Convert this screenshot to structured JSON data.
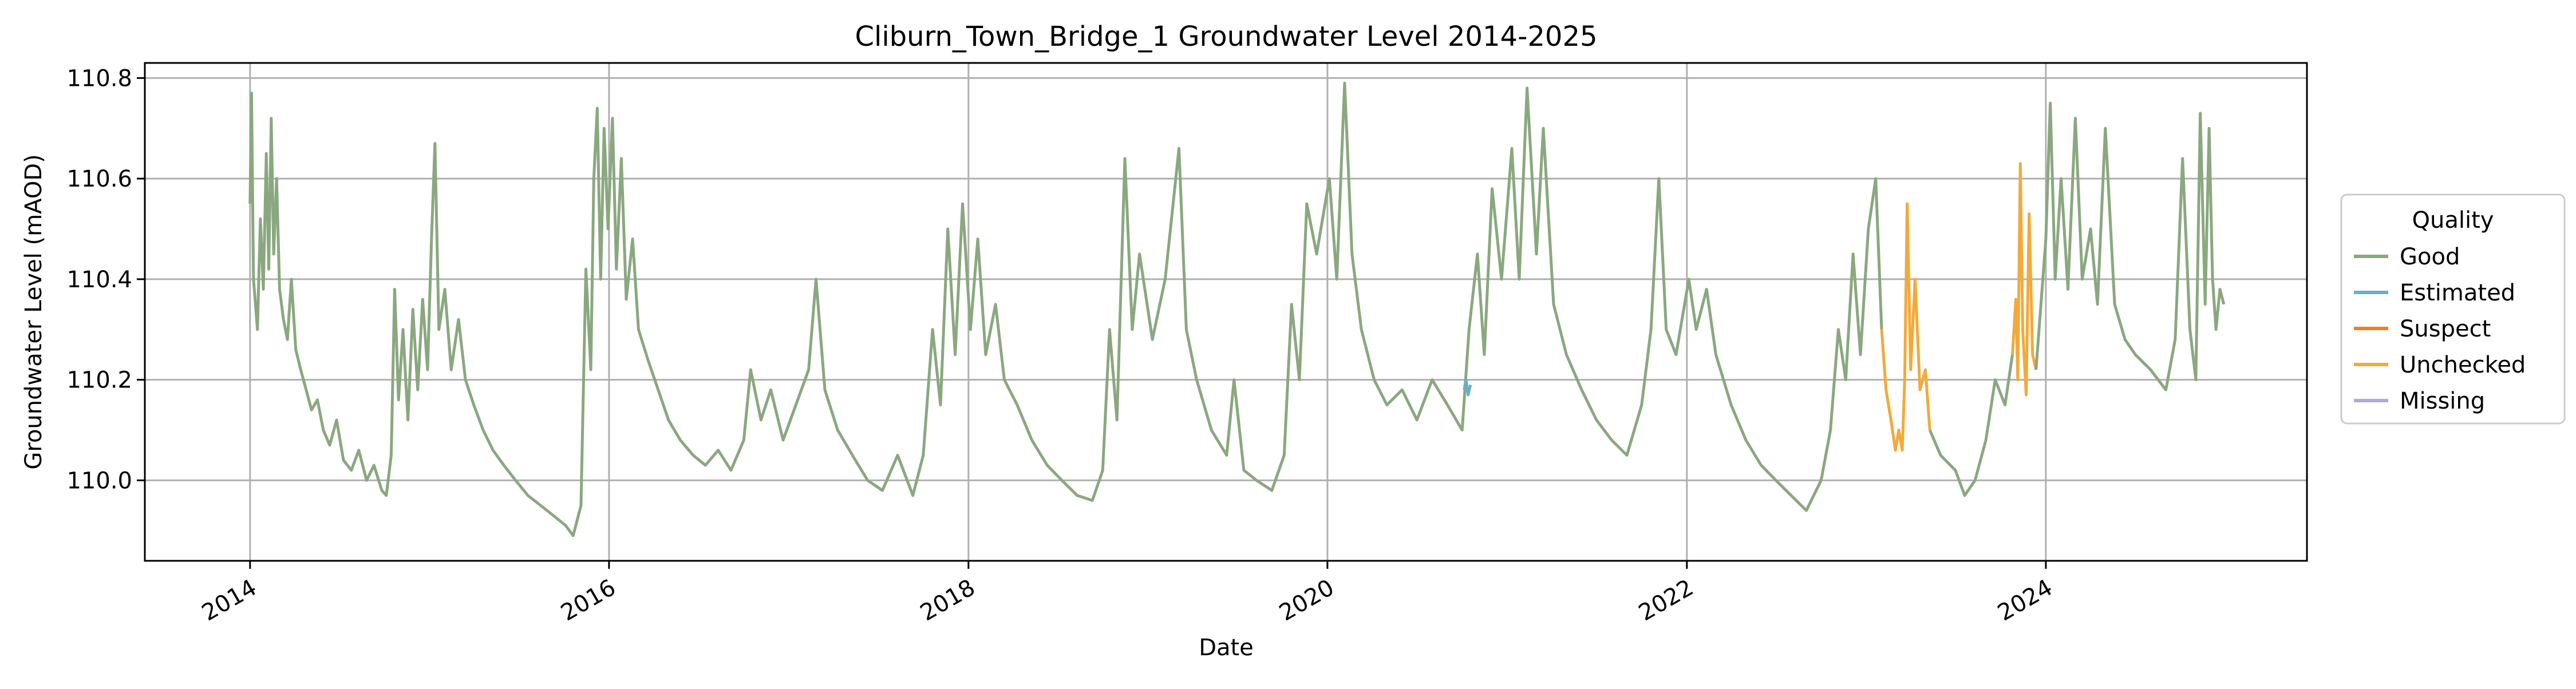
{
  "chart_data": {
    "type": "line",
    "title": "Cliburn_Town_Bridge_1 Groundwater Level 2014-2025",
    "xlabel": "Date",
    "ylabel": "Groundwater Level (mAOD)",
    "xlim": [
      "2013-06-01",
      "2025-06-15"
    ],
    "ylim": [
      109.84,
      110.83
    ],
    "x_ticks": [
      "2014",
      "2016",
      "2018",
      "2020",
      "2022",
      "2024"
    ],
    "y_ticks": [
      "110.0",
      "110.2",
      "110.4",
      "110.6",
      "110.8"
    ],
    "grid": true,
    "legend": {
      "title": "Quality",
      "placement": "right",
      "entries": [
        {
          "label": "Good",
          "color": "#8aa87f"
        },
        {
          "label": "Estimated",
          "color": "#6aafc7"
        },
        {
          "label": "Suspect",
          "color": "#f07f22"
        },
        {
          "label": "Unchecked",
          "color": "#f2aa3a"
        },
        {
          "label": "Missing",
          "color": "#b3a8d6"
        }
      ]
    },
    "series": [
      {
        "name": "Good",
        "color": "#8aa87f",
        "points": [
          [
            "2014-01-01",
            110.55
          ],
          [
            "2014-01-04",
            110.77
          ],
          [
            "2014-01-08",
            110.4
          ],
          [
            "2014-01-12",
            110.35
          ],
          [
            "2014-01-16",
            110.3
          ],
          [
            "2014-01-22",
            110.52
          ],
          [
            "2014-01-28",
            110.38
          ],
          [
            "2014-02-03",
            110.65
          ],
          [
            "2014-02-08",
            110.42
          ],
          [
            "2014-02-13",
            110.72
          ],
          [
            "2014-02-18",
            110.45
          ],
          [
            "2014-02-24",
            110.6
          ],
          [
            "2014-03-02",
            110.38
          ],
          [
            "2014-03-10",
            110.32
          ],
          [
            "2014-03-18",
            110.28
          ],
          [
            "2014-03-26",
            110.4
          ],
          [
            "2014-04-04",
            110.26
          ],
          [
            "2014-04-14",
            110.22
          ],
          [
            "2014-04-25",
            110.18
          ],
          [
            "2014-05-06",
            110.14
          ],
          [
            "2014-05-18",
            110.16
          ],
          [
            "2014-05-30",
            110.1
          ],
          [
            "2014-06-12",
            110.07
          ],
          [
            "2014-06-26",
            110.12
          ],
          [
            "2014-07-10",
            110.04
          ],
          [
            "2014-07-26",
            110.02
          ],
          [
            "2014-08-10",
            110.06
          ],
          [
            "2014-08-26",
            110.0
          ],
          [
            "2014-09-10",
            110.03
          ],
          [
            "2014-09-26",
            109.98
          ],
          [
            "2014-10-05",
            109.97
          ],
          [
            "2014-10-15",
            110.05
          ],
          [
            "2014-10-22",
            110.38
          ],
          [
            "2014-10-30",
            110.16
          ],
          [
            "2014-11-08",
            110.3
          ],
          [
            "2014-11-18",
            110.12
          ],
          [
            "2014-11-28",
            110.34
          ],
          [
            "2014-12-08",
            110.18
          ],
          [
            "2014-12-18",
            110.36
          ],
          [
            "2014-12-28",
            110.22
          ],
          [
            "2015-01-05",
            110.48
          ],
          [
            "2015-01-12",
            110.67
          ],
          [
            "2015-01-20",
            110.3
          ],
          [
            "2015-02-01",
            110.38
          ],
          [
            "2015-02-14",
            110.22
          ],
          [
            "2015-03-01",
            110.32
          ],
          [
            "2015-03-15",
            110.2
          ],
          [
            "2015-04-01",
            110.15
          ],
          [
            "2015-04-20",
            110.1
          ],
          [
            "2015-05-10",
            110.06
          ],
          [
            "2015-06-01",
            110.03
          ],
          [
            "2015-06-25",
            110.0
          ],
          [
            "2015-07-20",
            109.97
          ],
          [
            "2015-08-15",
            109.95
          ],
          [
            "2015-09-10",
            109.93
          ],
          [
            "2015-10-05",
            109.91
          ],
          [
            "2015-10-20",
            109.89
          ],
          [
            "2015-11-05",
            109.95
          ],
          [
            "2015-11-15",
            110.42
          ],
          [
            "2015-11-25",
            110.22
          ],
          [
            "2015-12-01",
            110.6
          ],
          [
            "2015-12-08",
            110.74
          ],
          [
            "2015-12-15",
            110.4
          ],
          [
            "2015-12-22",
            110.7
          ],
          [
            "2015-12-30",
            110.5
          ],
          [
            "2016-01-08",
            110.72
          ],
          [
            "2016-01-16",
            110.42
          ],
          [
            "2016-01-26",
            110.64
          ],
          [
            "2016-02-05",
            110.36
          ],
          [
            "2016-02-18",
            110.48
          ],
          [
            "2016-03-01",
            110.3
          ],
          [
            "2016-03-20",
            110.24
          ],
          [
            "2016-04-10",
            110.18
          ],
          [
            "2016-05-01",
            110.12
          ],
          [
            "2016-05-25",
            110.08
          ],
          [
            "2016-06-20",
            110.05
          ],
          [
            "2016-07-15",
            110.03
          ],
          [
            "2016-08-10",
            110.06
          ],
          [
            "2016-09-05",
            110.02
          ],
          [
            "2016-10-01",
            110.08
          ],
          [
            "2016-10-15",
            110.22
          ],
          [
            "2016-11-05",
            110.12
          ],
          [
            "2016-11-25",
            110.18
          ],
          [
            "2016-12-20",
            110.08
          ],
          [
            "2017-01-15",
            110.15
          ],
          [
            "2017-02-10",
            110.22
          ],
          [
            "2017-02-25",
            110.4
          ],
          [
            "2017-03-15",
            110.18
          ],
          [
            "2017-04-10",
            110.1
          ],
          [
            "2017-05-10",
            110.05
          ],
          [
            "2017-06-10",
            110.0
          ],
          [
            "2017-07-10",
            109.98
          ],
          [
            "2017-08-10",
            110.05
          ],
          [
            "2017-09-10",
            109.97
          ],
          [
            "2017-10-01",
            110.05
          ],
          [
            "2017-10-20",
            110.3
          ],
          [
            "2017-11-05",
            110.15
          ],
          [
            "2017-11-20",
            110.5
          ],
          [
            "2017-12-05",
            110.25
          ],
          [
            "2017-12-20",
            110.55
          ],
          [
            "2018-01-05",
            110.3
          ],
          [
            "2018-01-20",
            110.48
          ],
          [
            "2018-02-05",
            110.25
          ],
          [
            "2018-02-25",
            110.35
          ],
          [
            "2018-03-15",
            110.2
          ],
          [
            "2018-04-10",
            110.15
          ],
          [
            "2018-05-10",
            110.08
          ],
          [
            "2018-06-10",
            110.03
          ],
          [
            "2018-07-10",
            110.0
          ],
          [
            "2018-08-10",
            109.97
          ],
          [
            "2018-09-10",
            109.96
          ],
          [
            "2018-10-01",
            110.02
          ],
          [
            "2018-10-15",
            110.3
          ],
          [
            "2018-10-30",
            110.12
          ],
          [
            "2018-11-15",
            110.64
          ],
          [
            "2018-11-30",
            110.3
          ],
          [
            "2018-12-15",
            110.45
          ],
          [
            "2019-01-10",
            110.28
          ],
          [
            "2019-02-05",
            110.4
          ],
          [
            "2019-03-05",
            110.66
          ],
          [
            "2019-03-20",
            110.3
          ],
          [
            "2019-04-10",
            110.2
          ],
          [
            "2019-05-10",
            110.1
          ],
          [
            "2019-06-10",
            110.05
          ],
          [
            "2019-06-25",
            110.2
          ],
          [
            "2019-07-15",
            110.02
          ],
          [
            "2019-08-10",
            110.0
          ],
          [
            "2019-09-10",
            109.98
          ],
          [
            "2019-10-05",
            110.05
          ],
          [
            "2019-10-20",
            110.35
          ],
          [
            "2019-11-05",
            110.2
          ],
          [
            "2019-11-20",
            110.55
          ],
          [
            "2019-12-10",
            110.45
          ],
          [
            "2020-01-05",
            110.6
          ],
          [
            "2020-01-20",
            110.4
          ],
          [
            "2020-02-05",
            110.79
          ],
          [
            "2020-02-20",
            110.45
          ],
          [
            "2020-03-10",
            110.3
          ],
          [
            "2020-04-05",
            110.2
          ],
          [
            "2020-05-01",
            110.15
          ],
          [
            "2020-06-01",
            110.18
          ],
          [
            "2020-07-01",
            110.12
          ],
          [
            "2020-08-01",
            110.2
          ],
          [
            "2020-09-01",
            110.15
          ],
          [
            "2020-10-01",
            110.1
          ],
          [
            "2020-10-15",
            110.3
          ],
          [
            "2020-11-01",
            110.45
          ],
          [
            "2020-11-15",
            110.25
          ],
          [
            "2020-12-01",
            110.58
          ],
          [
            "2020-12-20",
            110.4
          ],
          [
            "2021-01-10",
            110.66
          ],
          [
            "2021-01-25",
            110.4
          ],
          [
            "2021-02-10",
            110.78
          ],
          [
            "2021-03-01",
            110.45
          ],
          [
            "2021-03-15",
            110.7
          ],
          [
            "2021-04-05",
            110.35
          ],
          [
            "2021-05-01",
            110.25
          ],
          [
            "2021-06-01",
            110.18
          ],
          [
            "2021-07-01",
            110.12
          ],
          [
            "2021-08-01",
            110.08
          ],
          [
            "2021-09-01",
            110.05
          ],
          [
            "2021-10-01",
            110.15
          ],
          [
            "2021-10-20",
            110.3
          ],
          [
            "2021-11-05",
            110.6
          ],
          [
            "2021-11-20",
            110.3
          ],
          [
            "2021-12-10",
            110.25
          ],
          [
            "2022-01-05",
            110.4
          ],
          [
            "2022-01-20",
            110.3
          ],
          [
            "2022-02-10",
            110.38
          ],
          [
            "2022-03-01",
            110.25
          ],
          [
            "2022-04-01",
            110.15
          ],
          [
            "2022-05-01",
            110.08
          ],
          [
            "2022-06-01",
            110.03
          ],
          [
            "2022-07-01",
            110.0
          ],
          [
            "2022-08-01",
            109.97
          ],
          [
            "2022-09-01",
            109.94
          ],
          [
            "2022-10-01",
            110.0
          ],
          [
            "2022-10-20",
            110.1
          ],
          [
            "2022-11-05",
            110.3
          ],
          [
            "2022-11-20",
            110.2
          ],
          [
            "2022-12-05",
            110.45
          ],
          [
            "2022-12-20",
            110.25
          ],
          [
            "2023-01-05",
            110.5
          ],
          [
            "2023-01-20",
            110.6
          ],
          [
            "2023-02-01",
            110.3
          ]
        ]
      },
      {
        "name": "Estimated",
        "color": "#6aafc7",
        "points": [
          [
            "2020-10-05",
            110.18
          ],
          [
            "2020-10-09",
            110.2
          ],
          [
            "2020-10-13",
            110.17
          ],
          [
            "2020-10-18",
            110.19
          ]
        ]
      },
      {
        "name": "Unchecked",
        "color": "#f2aa3a",
        "points": [
          [
            "2023-02-01",
            110.3
          ],
          [
            "2023-02-10",
            110.18
          ],
          [
            "2023-02-20",
            110.12
          ],
          [
            "2023-03-01",
            110.06
          ],
          [
            "2023-03-08",
            110.1
          ],
          [
            "2023-03-15",
            110.06
          ],
          [
            "2023-03-20",
            110.2
          ],
          [
            "2023-03-25",
            110.55
          ],
          [
            "2023-04-01",
            110.22
          ],
          [
            "2023-04-10",
            110.4
          ],
          [
            "2023-04-20",
            110.18
          ],
          [
            "2023-05-01",
            110.22
          ],
          [
            "2023-05-10",
            110.1
          ]
        ]
      },
      {
        "name": "Good",
        "color": "#8aa87f",
        "points": [
          [
            "2023-05-10",
            110.1
          ],
          [
            "2023-06-01",
            110.05
          ],
          [
            "2023-07-01",
            110.02
          ],
          [
            "2023-07-20",
            109.97
          ],
          [
            "2023-08-10",
            110.0
          ],
          [
            "2023-09-01",
            110.08
          ],
          [
            "2023-09-20",
            110.2
          ],
          [
            "2023-10-10",
            110.15
          ],
          [
            "2023-10-25",
            110.25
          ]
        ]
      },
      {
        "name": "Unchecked",
        "color": "#f2aa3a",
        "points": [
          [
            "2023-10-25",
            110.25
          ],
          [
            "2023-11-01",
            110.36
          ],
          [
            "2023-11-05",
            110.2
          ],
          [
            "2023-11-10",
            110.63
          ],
          [
            "2023-11-15",
            110.3
          ],
          [
            "2023-11-22",
            110.17
          ],
          [
            "2023-11-28",
            110.53
          ],
          [
            "2023-12-05",
            110.25
          ],
          [
            "2023-12-12",
            110.22
          ]
        ]
      },
      {
        "name": "Good",
        "color": "#8aa87f",
        "points": [
          [
            "2023-12-12",
            110.22
          ],
          [
            "2024-01-01",
            110.48
          ],
          [
            "2024-01-10",
            110.75
          ],
          [
            "2024-01-20",
            110.4
          ],
          [
            "2024-02-01",
            110.6
          ],
          [
            "2024-02-15",
            110.38
          ],
          [
            "2024-03-01",
            110.72
          ],
          [
            "2024-03-15",
            110.4
          ],
          [
            "2024-04-01",
            110.5
          ],
          [
            "2024-04-15",
            110.35
          ],
          [
            "2024-05-01",
            110.7
          ],
          [
            "2024-05-20",
            110.35
          ],
          [
            "2024-06-10",
            110.28
          ],
          [
            "2024-07-01",
            110.25
          ],
          [
            "2024-08-01",
            110.22
          ],
          [
            "2024-09-01",
            110.18
          ],
          [
            "2024-09-20",
            110.28
          ],
          [
            "2024-10-05",
            110.64
          ],
          [
            "2024-10-20",
            110.3
          ],
          [
            "2024-11-01",
            110.2
          ],
          [
            "2024-11-10",
            110.73
          ],
          [
            "2024-11-20",
            110.35
          ],
          [
            "2024-11-28",
            110.7
          ],
          [
            "2024-12-05",
            110.4
          ],
          [
            "2024-12-12",
            110.3
          ],
          [
            "2024-12-20",
            110.38
          ],
          [
            "2024-12-28",
            110.35
          ]
        ]
      }
    ]
  }
}
